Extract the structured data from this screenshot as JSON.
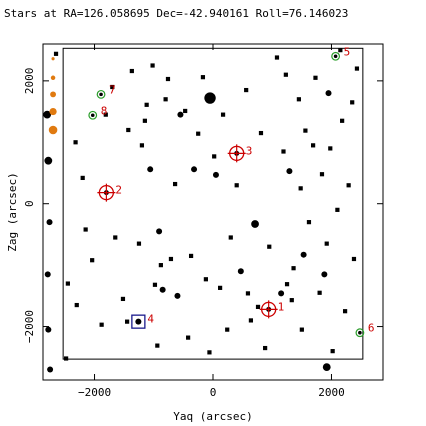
{
  "chart_data": {
    "type": "scatter",
    "title": "Stars at RA=126.058695 Dec=-42.940161 Roll=76.146023",
    "xlabel": "Yaq (arcsec)",
    "ylabel": "Zag (arcsec)",
    "xlim": [
      -2870,
      2870
    ],
    "ylim": [
      -2870,
      2600
    ],
    "xticks": [
      -2000,
      0,
      2000
    ],
    "yticks": [
      -2000,
      0,
      2000
    ],
    "xtick_labels": [
      "−2000",
      "0",
      "2000"
    ],
    "ytick_labels": [
      "−2000",
      "0",
      "2000"
    ],
    "detector_box": {
      "y_range": [
        -2530,
        2530
      ],
      "z_range": [
        -2530,
        2530
      ]
    },
    "colors": {
      "star": "#000000",
      "guide": "#cc0000",
      "acq": "#2a9d2a",
      "fid": "#1a1a8c",
      "offchip": "#e07a10",
      "label": "#cc0000"
    },
    "guide_stars": [
      {
        "id": "1",
        "y": 940,
        "z": -1720
      },
      {
        "id": "2",
        "y": -1800,
        "z": 180
      },
      {
        "id": "3",
        "y": 400,
        "z": 820
      }
    ],
    "acq_stars": [
      {
        "id": "5",
        "y": 2070,
        "z": 2400
      },
      {
        "id": "6",
        "y": 2480,
        "z": -2100
      },
      {
        "id": "7",
        "y": -1890,
        "z": 1780
      },
      {
        "id": "8",
        "y": -2030,
        "z": 1440
      }
    ],
    "fid_lights": [
      {
        "id": "4",
        "y": -1260,
        "z": -1920
      }
    ],
    "offchip_stars": [
      {
        "y": -2700,
        "z": 2360,
        "mag": 1
      },
      {
        "y": -2700,
        "z": 2050,
        "mag": 2
      },
      {
        "y": -2700,
        "z": 1780,
        "mag": 3
      },
      {
        "y": -2700,
        "z": 1500,
        "mag": 4
      },
      {
        "y": -2700,
        "z": 1200,
        "mag": 5
      }
    ],
    "stars": [
      {
        "y": -2800,
        "z": 1450,
        "mag": 3
      },
      {
        "y": -2780,
        "z": 700,
        "mag": 3
      },
      {
        "y": -2760,
        "z": -300,
        "mag": 2
      },
      {
        "y": -2790,
        "z": -1150,
        "mag": 2
      },
      {
        "y": -2780,
        "z": -2050,
        "mag": 2
      },
      {
        "y": -2750,
        "z": -2700,
        "mag": 2
      },
      {
        "y": -2650,
        "z": 2440,
        "mag": 1
      },
      {
        "y": -2480,
        "z": -2520,
        "mag": 1
      },
      {
        "y": -2450,
        "z": -1300,
        "mag": 1
      },
      {
        "y": -2200,
        "z": 420,
        "mag": 1
      },
      {
        "y": -2150,
        "z": -420,
        "mag": 1
      },
      {
        "y": -2040,
        "z": -920,
        "mag": 1
      },
      {
        "y": -1880,
        "z": -1970,
        "mag": 1
      },
      {
        "y": -1810,
        "z": 1450,
        "mag": 1
      },
      {
        "y": -1700,
        "z": 1900,
        "mag": 1
      },
      {
        "y": -1520,
        "z": -1550,
        "mag": 1
      },
      {
        "y": -1430,
        "z": 1200,
        "mag": 1
      },
      {
        "y": -1370,
        "z": 2160,
        "mag": 1
      },
      {
        "y": -1250,
        "z": -650,
        "mag": 1
      },
      {
        "y": -1200,
        "z": 950,
        "mag": 1
      },
      {
        "y": -1150,
        "z": 1350,
        "mag": 1
      },
      {
        "y": -1120,
        "z": 1610,
        "mag": 1
      },
      {
        "y": -1060,
        "z": 560,
        "mag": 2
      },
      {
        "y": -1020,
        "z": 2250,
        "mag": 1
      },
      {
        "y": -980,
        "z": -1320,
        "mag": 1
      },
      {
        "y": -940,
        "z": -2310,
        "mag": 1
      },
      {
        "y": -910,
        "z": -450,
        "mag": 2
      },
      {
        "y": -880,
        "z": -1000,
        "mag": 1
      },
      {
        "y": -850,
        "z": -1400,
        "mag": 2
      },
      {
        "y": -800,
        "z": 1700,
        "mag": 1
      },
      {
        "y": -760,
        "z": 2030,
        "mag": 1
      },
      {
        "y": -710,
        "z": -900,
        "mag": 1
      },
      {
        "y": -640,
        "z": 320,
        "mag": 1
      },
      {
        "y": -600,
        "z": -1500,
        "mag": 2
      },
      {
        "y": -550,
        "z": 1450,
        "mag": 2
      },
      {
        "y": -470,
        "z": 1510,
        "mag": 1
      },
      {
        "y": -420,
        "z": -2180,
        "mag": 1
      },
      {
        "y": -370,
        "z": -850,
        "mag": 1
      },
      {
        "y": -320,
        "z": 560,
        "mag": 2
      },
      {
        "y": -250,
        "z": 1140,
        "mag": 1
      },
      {
        "y": -170,
        "z": 2060,
        "mag": 1
      },
      {
        "y": -120,
        "z": -1230,
        "mag": 1
      },
      {
        "y": -50,
        "z": 1720,
        "mag": 5
      },
      {
        "y": -60,
        "z": -2420,
        "mag": 1
      },
      {
        "y": 20,
        "z": 770,
        "mag": 1
      },
      {
        "y": 50,
        "z": 470,
        "mag": 2
      },
      {
        "y": 120,
        "z": -1370,
        "mag": 1
      },
      {
        "y": 170,
        "z": 1450,
        "mag": 1
      },
      {
        "y": 240,
        "z": -2050,
        "mag": 1
      },
      {
        "y": 300,
        "z": -550,
        "mag": 1
      },
      {
        "y": 400,
        "z": 300,
        "mag": 1
      },
      {
        "y": 470,
        "z": -1100,
        "mag": 2
      },
      {
        "y": 560,
        "z": 1850,
        "mag": 1
      },
      {
        "y": 590,
        "z": -1460,
        "mag": 1
      },
      {
        "y": 640,
        "z": -1900,
        "mag": 1
      },
      {
        "y": 710,
        "z": -330,
        "mag": 3
      },
      {
        "y": 760,
        "z": -1680,
        "mag": 1
      },
      {
        "y": 810,
        "z": 1150,
        "mag": 1
      },
      {
        "y": 880,
        "z": -2350,
        "mag": 1
      },
      {
        "y": 950,
        "z": -700,
        "mag": 1
      },
      {
        "y": 1080,
        "z": 2380,
        "mag": 1
      },
      {
        "y": 1150,
        "z": -1460,
        "mag": 2
      },
      {
        "y": 1190,
        "z": 850,
        "mag": 1
      },
      {
        "y": 1230,
        "z": 2100,
        "mag": 1
      },
      {
        "y": 1250,
        "z": -1310,
        "mag": 1
      },
      {
        "y": 1290,
        "z": 530,
        "mag": 2
      },
      {
        "y": 1330,
        "z": -1570,
        "mag": 1
      },
      {
        "y": 1360,
        "z": -1050,
        "mag": 1
      },
      {
        "y": 1450,
        "z": 1700,
        "mag": 1
      },
      {
        "y": 1480,
        "z": 250,
        "mag": 1
      },
      {
        "y": 1500,
        "z": -2050,
        "mag": 1
      },
      {
        "y": 1530,
        "z": -830,
        "mag": 2
      },
      {
        "y": 1560,
        "z": 1190,
        "mag": 1
      },
      {
        "y": 1620,
        "z": -300,
        "mag": 1
      },
      {
        "y": 1690,
        "z": 950,
        "mag": 1
      },
      {
        "y": 1730,
        "z": 2050,
        "mag": 1
      },
      {
        "y": 1800,
        "z": -1450,
        "mag": 1
      },
      {
        "y": 1840,
        "z": 480,
        "mag": 1
      },
      {
        "y": 1880,
        "z": -1150,
        "mag": 2
      },
      {
        "y": 1920,
        "z": -650,
        "mag": 1
      },
      {
        "y": 1950,
        "z": 1800,
        "mag": 2
      },
      {
        "y": 1980,
        "z": 900,
        "mag": 1
      },
      {
        "y": 2020,
        "z": -2400,
        "mag": 1
      },
      {
        "y": 2100,
        "z": -100,
        "mag": 1
      },
      {
        "y": 2180,
        "z": 1350,
        "mag": 1
      },
      {
        "y": 2230,
        "z": -1750,
        "mag": 1
      },
      {
        "y": 2290,
        "z": 300,
        "mag": 1
      },
      {
        "y": 2350,
        "z": 1650,
        "mag": 1
      },
      {
        "y": 2380,
        "z": -900,
        "mag": 1
      },
      {
        "y": 2430,
        "z": 2200,
        "mag": 1
      },
      {
        "y": 1920,
        "z": -2660,
        "mag": 3
      },
      {
        "y": 2150,
        "z": 2500,
        "mag": 1
      },
      {
        "y": -1450,
        "z": -1920,
        "mag": 1
      },
      {
        "y": -2300,
        "z": -1650,
        "mag": 1
      },
      {
        "y": -2320,
        "z": 1000,
        "mag": 1
      },
      {
        "y": -1650,
        "z": -550,
        "mag": 1
      }
    ]
  }
}
